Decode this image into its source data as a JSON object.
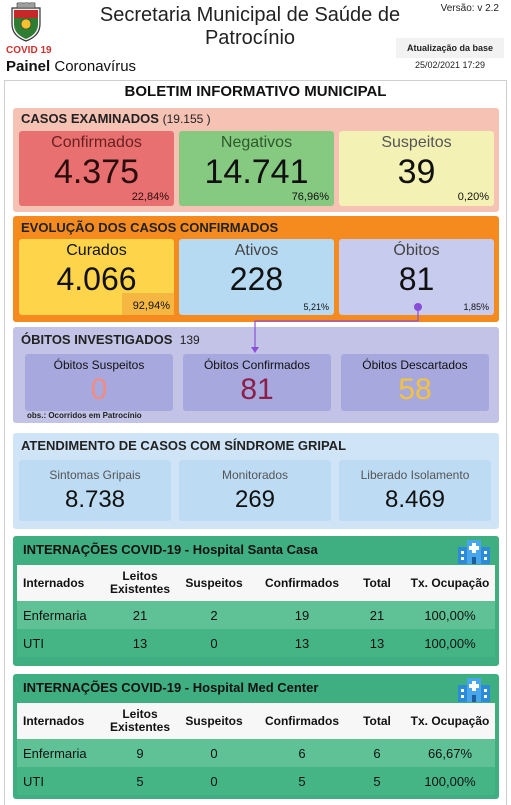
{
  "header": {
    "title": "Secretaria Municipal de Saúde de Patrocínio",
    "version": "Versão: v 2.2",
    "covid_label": "COVID 19",
    "painel_bold": "Painel",
    "painel_rest": " Coronavírus",
    "update_label": "Atualização da base",
    "update_date": "25/02/2021 17:29"
  },
  "bulletin_title": "BOLETIM INFORMATIVO MUNICIPAL",
  "casos_examinados": {
    "title": "CASOS EXAMINADOS",
    "total": "(19.155 )",
    "confirmados": {
      "label": "Confirmados",
      "value": "4.375",
      "pct": "22,84%"
    },
    "negativos": {
      "label": "Negativos",
      "value": "14.741",
      "pct": "76,96%"
    },
    "suspeitos": {
      "label": "Suspeitos",
      "value": "39",
      "pct": "0,20%"
    }
  },
  "evolucao": {
    "title": "EVOLUÇÃO DOS CASOS CONFIRMADOS",
    "curados": {
      "label": "Curados",
      "value": "4.066",
      "pct": "92,94%"
    },
    "ativos": {
      "label": "Ativos",
      "value": "228",
      "pct": "5,21%"
    },
    "obitos": {
      "label": "Óbitos",
      "value": "81",
      "pct": "1,85%"
    }
  },
  "obitos_investigados": {
    "title": "ÓBITOS INVESTIGADOS",
    "total": "139",
    "suspeitos": {
      "label": "Óbitos Suspeitos",
      "value": "0"
    },
    "confirmados": {
      "label": "Óbitos Confirmados",
      "value": "81"
    },
    "descartados": {
      "label": "Óbitos Descartados",
      "value": "58"
    },
    "obs": "obs.: Ocorridos em Patrocínio"
  },
  "sindrome_gripal": {
    "title": "ATENDIMENTO DE CASOS COM SÍNDROME GRIPAL",
    "sintomas": {
      "label": "Sintomas Gripais",
      "value": "8.738"
    },
    "monitorados": {
      "label": "Monitorados",
      "value": "269"
    },
    "liberado": {
      "label": "Liberado Isolamento",
      "value": "8.469"
    }
  },
  "table_headers": {
    "internados": "Internados",
    "leitos": "Leitos Existentes",
    "suspeitos": "Suspeitos",
    "confirmados": "Confirmados",
    "total": "Total",
    "ocupacao": "Tx. Ocupação"
  },
  "hospital_santa_casa": {
    "title": "INTERNAÇÕES COVID-19 - Hospital Santa Casa",
    "rows": [
      {
        "name": "Enfermaria",
        "leitos": "21",
        "suspeitos": "2",
        "confirmados": "19",
        "total": "21",
        "ocupacao": "100,00%"
      },
      {
        "name": "UTI",
        "leitos": "13",
        "suspeitos": "0",
        "confirmados": "13",
        "total": "13",
        "ocupacao": "100,00%"
      }
    ]
  },
  "hospital_med_center": {
    "title": "INTERNAÇÕES COVID-19 - Hospital Med Center",
    "rows": [
      {
        "name": "Enfermaria",
        "leitos": "9",
        "suspeitos": "0",
        "confirmados": "6",
        "total": "6",
        "ocupacao": "66,67%"
      },
      {
        "name": "UTI",
        "leitos": "5",
        "suspeitos": "0",
        "confirmados": "5",
        "total": "5",
        "ocupacao": "100,00%"
      }
    ]
  },
  "icons": {
    "logo": "city-coat-of-arms",
    "hospital": "hospital-icon"
  },
  "colors": {
    "casos_bg": "#f5c2b4",
    "confirmados": "#e97070",
    "negativos": "#86c981",
    "suspeitos": "#f3f2b4",
    "evolucao_bg": "#f58a1f",
    "curados": "#fdd44a",
    "ativos": "#b7daf3",
    "obitos": "#c7cbed",
    "obitos_inv_bg": "#c2c3e6",
    "sindrome_bg": "#cfe5f7",
    "hospital_bg": "#3fae80",
    "connector": "#8a4fd6"
  }
}
